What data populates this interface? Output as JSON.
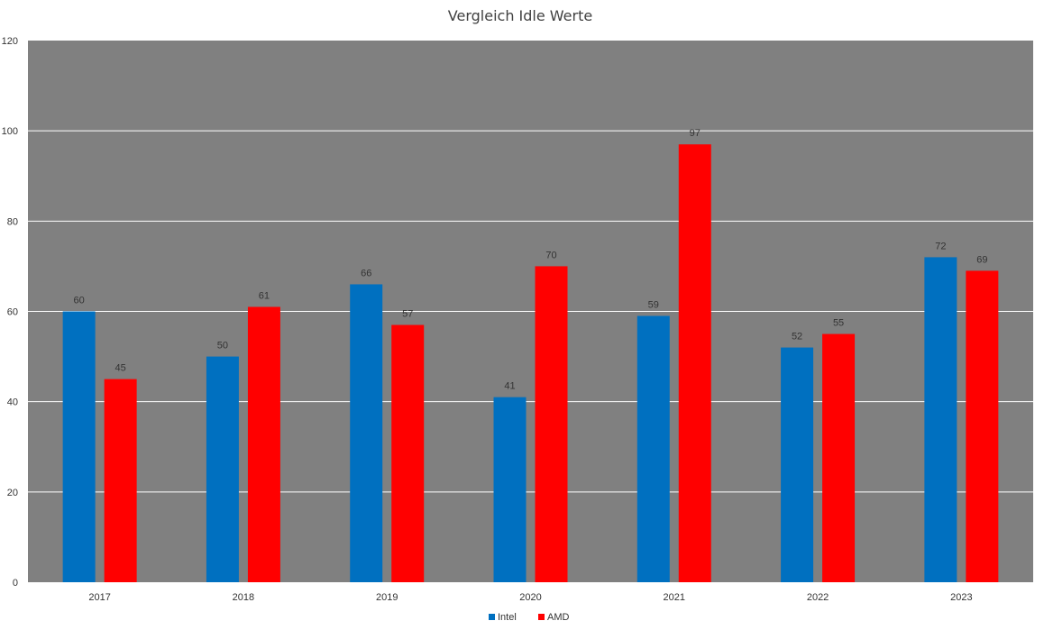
{
  "chart_data": {
    "type": "bar",
    "title": "Vergleich Idle Werte",
    "xlabel": "",
    "ylabel": "",
    "categories": [
      "2017",
      "2018",
      "2019",
      "2020",
      "2021",
      "2022",
      "2023"
    ],
    "series": [
      {
        "name": "Intel",
        "color": "#0070c0",
        "values": [
          60,
          50,
          66,
          41,
          59,
          52,
          72
        ]
      },
      {
        "name": "AMD",
        "color": "#ff0000",
        "values": [
          45,
          61,
          57,
          70,
          97,
          55,
          69
        ]
      }
    ],
    "ylim": [
      0,
      120
    ],
    "yticks": [
      "0",
      "20",
      "40",
      "60",
      "80",
      "100",
      "120"
    ],
    "grid": true,
    "legend": "bottom-center",
    "plot_background": "#808080",
    "gridline_color": "#ffffff"
  }
}
